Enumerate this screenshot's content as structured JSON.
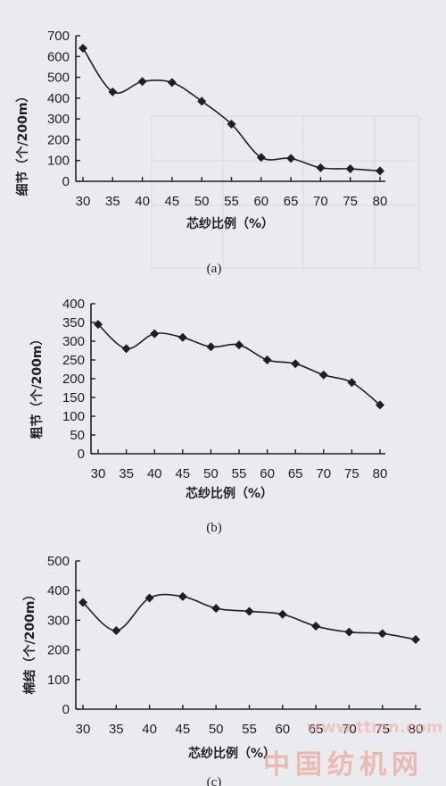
{
  "chart_data": [
    {
      "type": "line",
      "caption": "(a)",
      "xlabel": "芯纱比例（%）",
      "ylabel": "细节（个/200m）",
      "x": [
        30,
        35,
        40,
        45,
        50,
        55,
        60,
        65,
        70,
        75,
        80
      ],
      "xlim": [
        30,
        80
      ],
      "ylim": [
        0,
        700
      ],
      "yticks": [
        0,
        100,
        200,
        300,
        400,
        500,
        600,
        700
      ],
      "series": [
        {
          "values": [
            640,
            430,
            480,
            475,
            385,
            275,
            115,
            110,
            65,
            60,
            50
          ]
        }
      ]
    },
    {
      "type": "line",
      "caption": "(b)",
      "xlabel": "芯纱比例（%）",
      "ylabel": "粗节（个/200m）",
      "x": [
        30,
        35,
        40,
        45,
        50,
        55,
        60,
        65,
        70,
        75,
        80
      ],
      "xlim": [
        30,
        80
      ],
      "ylim": [
        0,
        400
      ],
      "yticks": [
        0,
        50,
        100,
        150,
        200,
        250,
        300,
        350,
        400
      ],
      "series": [
        {
          "values": [
            345,
            280,
            320,
            310,
            285,
            290,
            250,
            240,
            210,
            190,
            130
          ]
        }
      ]
    },
    {
      "type": "line",
      "caption": "(c)",
      "xlabel": "芯纱比例（%）",
      "ylabel": "棉结（个/200m）",
      "x": [
        30,
        35,
        40,
        45,
        50,
        55,
        60,
        65,
        70,
        75,
        80
      ],
      "xlim": [
        30,
        80
      ],
      "ylim": [
        0,
        500
      ],
      "yticks": [
        0,
        100,
        200,
        300,
        400,
        500
      ],
      "series": [
        {
          "values": [
            360,
            265,
            375,
            380,
            340,
            330,
            320,
            280,
            260,
            255,
            235
          ]
        }
      ]
    }
  ],
  "watermark": {
    "url": "www.ttmn.com",
    "name": "中国纺机网"
  },
  "colors": {
    "line": "#1d1f24",
    "background": "#e9ebef",
    "watermark": "#ef8f84"
  }
}
